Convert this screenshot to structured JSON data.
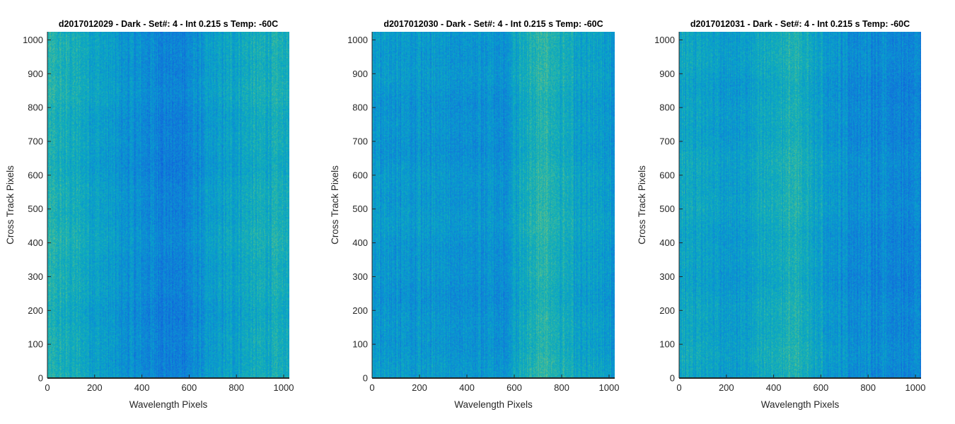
{
  "chart_data": [
    {
      "type": "heatmap",
      "title": "d2017012029 - Dark - Set#: 4 - Int 0.215 s Temp: -60C",
      "xlabel": "Wavelength Pixels",
      "ylabel": "Cross Track Pixels",
      "xlim": [
        0,
        1024
      ],
      "ylim": [
        0,
        1024
      ],
      "xticks": [
        0,
        200,
        400,
        600,
        800,
        1000
      ],
      "yticks": [
        0,
        100,
        200,
        300,
        400,
        500,
        600,
        700,
        800,
        900,
        1000
      ],
      "colormap": "parula",
      "grid": false,
      "column_intensity_profile": [
        {
          "x": 0,
          "level": 0.55
        },
        {
          "x": 150,
          "level": 0.5
        },
        {
          "x": 300,
          "level": 0.4
        },
        {
          "x": 550,
          "level": 0.3
        },
        {
          "x": 700,
          "level": 0.42
        },
        {
          "x": 850,
          "level": 0.5
        },
        {
          "x": 1024,
          "level": 0.52
        }
      ]
    },
    {
      "type": "heatmap",
      "title": "d2017012030 - Dark - Set#: 4 - Int 0.215 s Temp: -60C",
      "xlabel": "Wavelength Pixels",
      "ylabel": "Cross Track Pixels",
      "xlim": [
        0,
        1024
      ],
      "ylim": [
        0,
        1024
      ],
      "xticks": [
        0,
        200,
        400,
        600,
        800,
        1000
      ],
      "yticks": [
        0,
        100,
        200,
        300,
        400,
        500,
        600,
        700,
        800,
        900,
        1000
      ],
      "colormap": "parula",
      "grid": false,
      "column_intensity_profile": [
        {
          "x": 0,
          "level": 0.42
        },
        {
          "x": 300,
          "level": 0.4
        },
        {
          "x": 550,
          "level": 0.38
        },
        {
          "x": 720,
          "level": 0.6
        },
        {
          "x": 850,
          "level": 0.48
        },
        {
          "x": 1024,
          "level": 0.4
        }
      ]
    },
    {
      "type": "heatmap",
      "title": "d2017012031 - Dark - Set#: 4 - Int 0.215 s Temp: -60C",
      "xlabel": "Wavelength Pixels",
      "ylabel": "Cross Track Pixels",
      "xlim": [
        0,
        1024
      ],
      "ylim": [
        0,
        1024
      ],
      "xticks": [
        0,
        200,
        400,
        600,
        800,
        1000
      ],
      "yticks": [
        0,
        100,
        200,
        300,
        400,
        500,
        600,
        700,
        800,
        900,
        1000
      ],
      "colormap": "parula",
      "grid": false,
      "column_intensity_profile": [
        {
          "x": 0,
          "level": 0.5
        },
        {
          "x": 250,
          "level": 0.42
        },
        {
          "x": 480,
          "level": 0.55
        },
        {
          "x": 700,
          "level": 0.38
        },
        {
          "x": 1024,
          "level": 0.32
        }
      ]
    }
  ]
}
